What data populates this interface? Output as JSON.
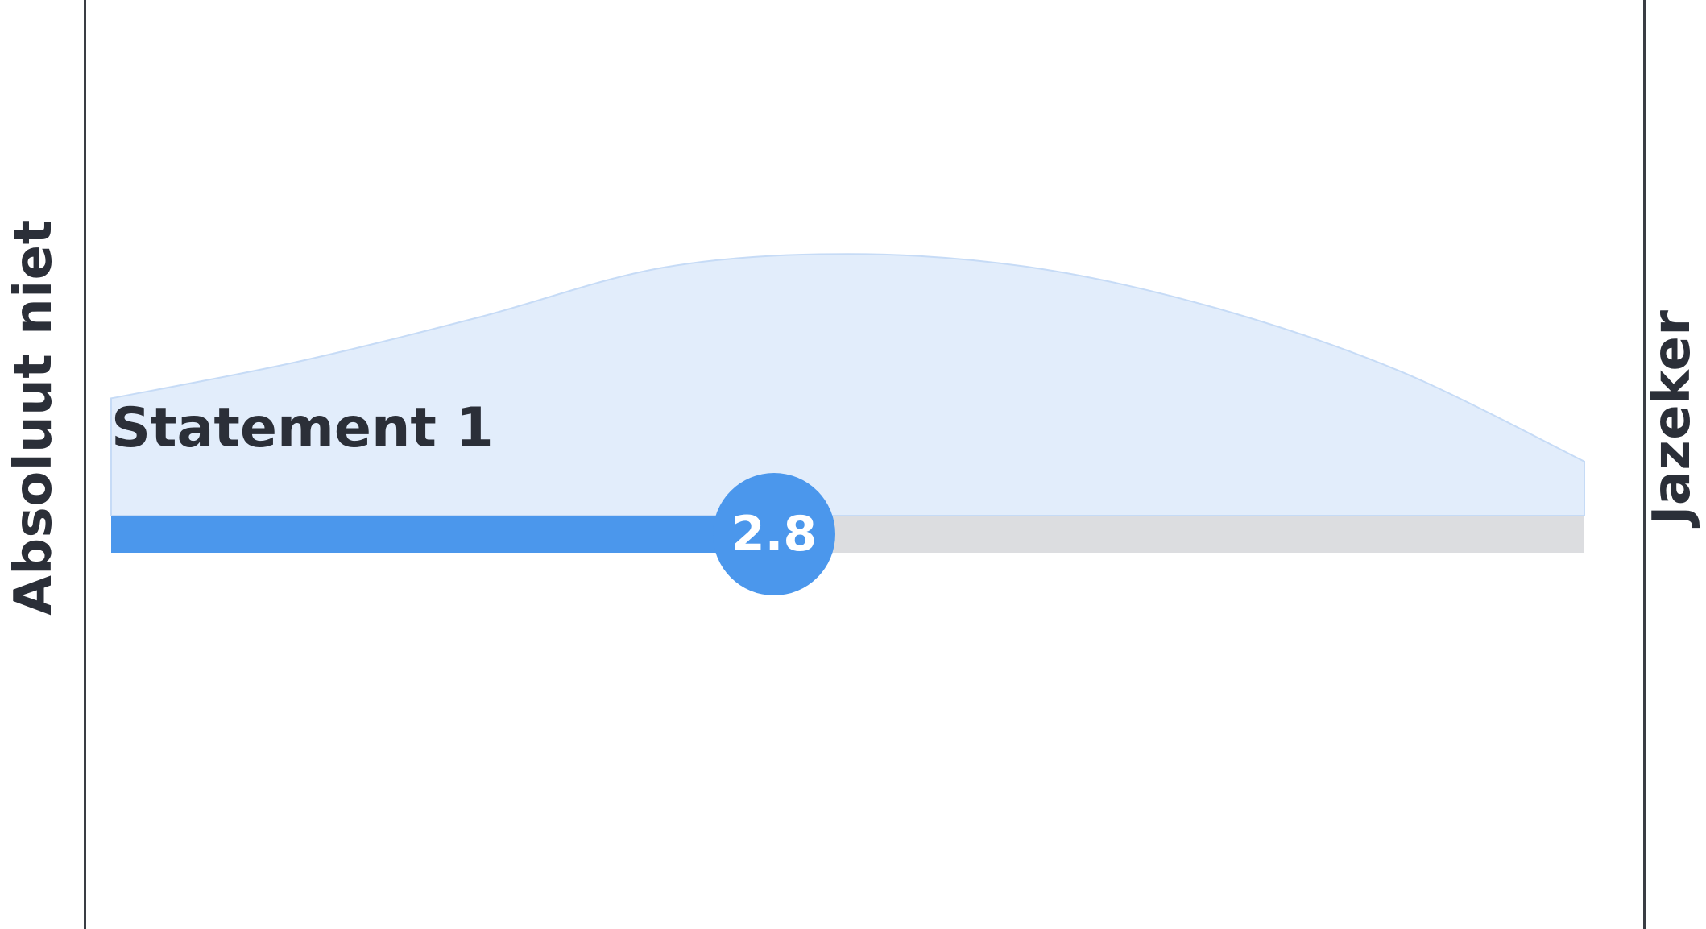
{
  "scale": {
    "left_label": "Absoluut niet",
    "right_label": "Jazeker"
  },
  "chart_data": {
    "type": "area",
    "title": "",
    "xlim": [
      1,
      5
    ],
    "distribution_x": [
      1.0,
      1.5,
      2.0,
      2.5,
      3.0,
      3.5,
      4.0,
      4.5,
      5.0
    ],
    "distribution_y": [
      0.26,
      0.34,
      0.44,
      0.55,
      0.58,
      0.55,
      0.46,
      0.32,
      0.12
    ],
    "series": [
      {
        "label": "Statement 1",
        "value": 2.8,
        "value_label": "2.8"
      }
    ]
  },
  "colors": {
    "accent": "#4b97ec",
    "track": "#dcdde0",
    "distribution_fill": "#e2edfb",
    "distribution_stroke": "#c6dbf6",
    "axis": "#3a3d44",
    "text": "#2b2f38"
  }
}
